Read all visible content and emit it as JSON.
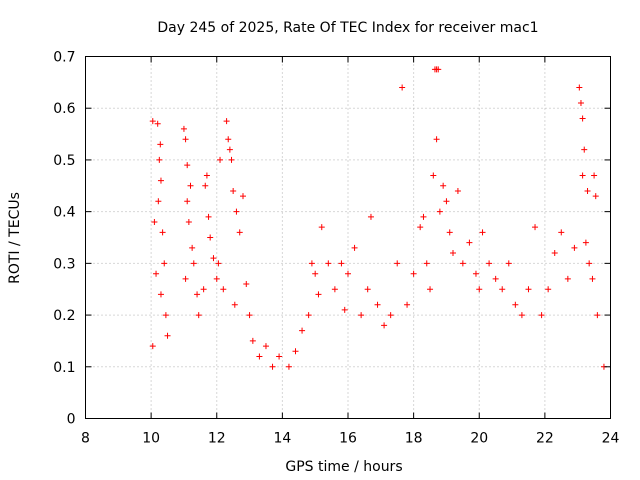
{
  "chart_data": {
    "type": "scatter",
    "title": "Day 245 of 2025, Rate Of TEC Index for receiver mac1",
    "xlabel": "GPS time / hours",
    "ylabel": "ROTI / TECUs",
    "xlim": [
      8,
      24
    ],
    "ylim": [
      0,
      0.7
    ],
    "x_ticks": [
      "8",
      "10",
      "12",
      "14",
      "16",
      "18",
      "20",
      "22",
      "24"
    ],
    "y_ticks": [
      "0",
      "0.1",
      "0.2",
      "0.3",
      "0.4",
      "0.5",
      "0.6",
      "0.7"
    ],
    "grid": true,
    "marker": "+",
    "color": "#ff0000",
    "series": [
      {
        "name": "mac1",
        "points": [
          [
            10.05,
            0.575
          ],
          [
            10.2,
            0.57
          ],
          [
            10.28,
            0.53
          ],
          [
            10.25,
            0.5
          ],
          [
            10.3,
            0.46
          ],
          [
            10.22,
            0.42
          ],
          [
            10.35,
            0.36
          ],
          [
            10.1,
            0.38
          ],
          [
            10.4,
            0.3
          ],
          [
            10.15,
            0.28
          ],
          [
            10.3,
            0.24
          ],
          [
            10.45,
            0.2
          ],
          [
            10.05,
            0.14
          ],
          [
            10.5,
            0.16
          ],
          [
            11.0,
            0.56
          ],
          [
            11.05,
            0.54
          ],
          [
            11.1,
            0.49
          ],
          [
            11.2,
            0.45
          ],
          [
            11.1,
            0.42
          ],
          [
            11.15,
            0.38
          ],
          [
            11.25,
            0.33
          ],
          [
            11.3,
            0.3
          ],
          [
            11.05,
            0.27
          ],
          [
            11.4,
            0.24
          ],
          [
            11.45,
            0.2
          ],
          [
            11.6,
            0.25
          ],
          [
            11.65,
            0.45
          ],
          [
            11.7,
            0.47
          ],
          [
            11.75,
            0.39
          ],
          [
            11.8,
            0.35
          ],
          [
            11.9,
            0.31
          ],
          [
            12.0,
            0.27
          ],
          [
            12.05,
            0.3
          ],
          [
            12.1,
            0.5
          ],
          [
            12.2,
            0.25
          ],
          [
            12.3,
            0.575
          ],
          [
            12.35,
            0.54
          ],
          [
            12.4,
            0.52
          ],
          [
            12.45,
            0.5
          ],
          [
            12.5,
            0.44
          ],
          [
            12.6,
            0.4
          ],
          [
            12.7,
            0.36
          ],
          [
            12.8,
            0.43
          ],
          [
            12.9,
            0.26
          ],
          [
            12.55,
            0.22
          ],
          [
            13.0,
            0.2
          ],
          [
            13.1,
            0.15
          ],
          [
            13.3,
            0.12
          ],
          [
            13.5,
            0.14
          ],
          [
            13.7,
            0.1
          ],
          [
            13.9,
            0.12
          ],
          [
            14.2,
            0.1
          ],
          [
            14.4,
            0.13
          ],
          [
            14.6,
            0.17
          ],
          [
            14.8,
            0.2
          ],
          [
            14.9,
            0.3
          ],
          [
            15.0,
            0.28
          ],
          [
            15.1,
            0.24
          ],
          [
            15.2,
            0.37
          ],
          [
            15.4,
            0.3
          ],
          [
            15.6,
            0.25
          ],
          [
            15.8,
            0.3
          ],
          [
            15.9,
            0.21
          ],
          [
            16.0,
            0.28
          ],
          [
            16.2,
            0.33
          ],
          [
            16.4,
            0.2
          ],
          [
            16.6,
            0.25
          ],
          [
            16.7,
            0.39
          ],
          [
            16.9,
            0.22
          ],
          [
            17.1,
            0.18
          ],
          [
            17.3,
            0.2
          ],
          [
            17.5,
            0.3
          ],
          [
            17.65,
            0.64
          ],
          [
            17.8,
            0.22
          ],
          [
            18.0,
            0.28
          ],
          [
            18.2,
            0.37
          ],
          [
            18.3,
            0.39
          ],
          [
            18.4,
            0.3
          ],
          [
            18.5,
            0.25
          ],
          [
            18.6,
            0.47
          ],
          [
            18.65,
            0.675
          ],
          [
            18.7,
            0.675
          ],
          [
            18.75,
            0.675
          ],
          [
            18.7,
            0.54
          ],
          [
            18.8,
            0.4
          ],
          [
            18.9,
            0.45
          ],
          [
            19.0,
            0.42
          ],
          [
            19.1,
            0.36
          ],
          [
            19.2,
            0.32
          ],
          [
            19.35,
            0.44
          ],
          [
            19.5,
            0.3
          ],
          [
            19.7,
            0.34
          ],
          [
            19.9,
            0.28
          ],
          [
            20.0,
            0.25
          ],
          [
            20.1,
            0.36
          ],
          [
            20.3,
            0.3
          ],
          [
            20.5,
            0.27
          ],
          [
            20.7,
            0.25
          ],
          [
            20.9,
            0.3
          ],
          [
            21.1,
            0.22
          ],
          [
            21.3,
            0.2
          ],
          [
            21.5,
            0.25
          ],
          [
            21.7,
            0.37
          ],
          [
            21.9,
            0.2
          ],
          [
            22.1,
            0.25
          ],
          [
            22.3,
            0.32
          ],
          [
            22.5,
            0.36
          ],
          [
            22.7,
            0.27
          ],
          [
            22.9,
            0.33
          ],
          [
            23.05,
            0.64
          ],
          [
            23.1,
            0.61
          ],
          [
            23.15,
            0.58
          ],
          [
            23.2,
            0.52
          ],
          [
            23.15,
            0.47
          ],
          [
            23.3,
            0.44
          ],
          [
            23.5,
            0.47
          ],
          [
            23.55,
            0.43
          ],
          [
            23.25,
            0.34
          ],
          [
            23.35,
            0.3
          ],
          [
            23.45,
            0.27
          ],
          [
            23.6,
            0.2
          ],
          [
            23.8,
            0.1
          ]
        ]
      }
    ]
  }
}
